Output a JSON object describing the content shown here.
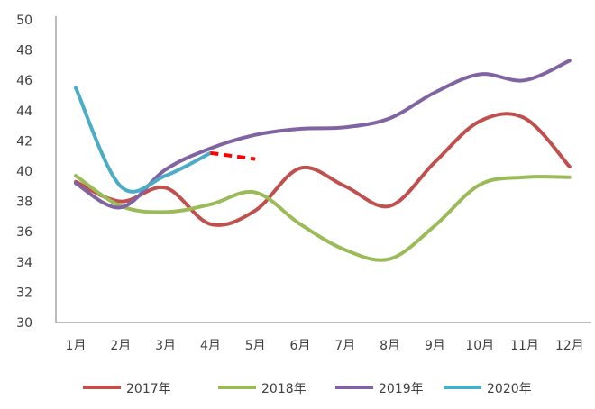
{
  "chart_data": {
    "type": "line",
    "categories": [
      "1月",
      "2月",
      "3月",
      "4月",
      "5月",
      "6月",
      "7月",
      "8月",
      "9月",
      "10月",
      "11月",
      "12月"
    ],
    "ylim": [
      30,
      50
    ],
    "yticks": [
      30,
      32,
      34,
      36,
      38,
      40,
      42,
      44,
      46,
      48,
      50
    ],
    "grid": false,
    "legend_position": "bottom",
    "series": [
      {
        "name": "2017年",
        "color": "#C0504D",
        "values": [
          39.3,
          38.0,
          38.9,
          36.5,
          37.4,
          40.2,
          39.0,
          37.7,
          40.6,
          43.3,
          43.5,
          40.3
        ]
      },
      {
        "name": "2018年",
        "color": "#9BBB59",
        "values": [
          39.7,
          37.7,
          37.3,
          37.8,
          38.6,
          36.5,
          34.8,
          34.2,
          36.4,
          39.1,
          39.6,
          39.6
        ]
      },
      {
        "name": "2019年",
        "color": "#8064A2",
        "values": [
          39.2,
          37.6,
          40.1,
          41.5,
          42.4,
          42.8,
          42.9,
          43.5,
          45.2,
          46.4,
          46.0,
          47.3
        ]
      },
      {
        "name": "2020年",
        "color": "#4BACC6",
        "values": [
          45.5,
          39.0,
          39.7,
          41.2,
          null,
          null,
          null,
          null,
          null,
          null,
          null,
          null
        ]
      }
    ],
    "forecast": {
      "color": "#FF0000",
      "style": "dashed",
      "values": [
        null,
        null,
        null,
        41.2,
        40.8,
        null,
        null,
        null,
        null,
        null,
        null,
        null
      ]
    }
  }
}
